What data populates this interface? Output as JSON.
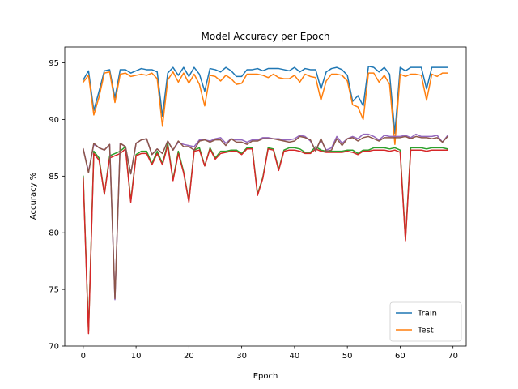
{
  "chart_data": {
    "type": "line",
    "title": "Model Accuracy per Epoch",
    "xlabel": "Epoch",
    "ylabel": "Accuracy %",
    "xlim": [
      -3.5,
      72.5
    ],
    "ylim": [
      70,
      96.4
    ],
    "xticks": [
      0,
      10,
      20,
      30,
      40,
      50,
      60,
      70
    ],
    "yticks": [
      70,
      75,
      80,
      85,
      90,
      95
    ],
    "grid": false,
    "legend_position": "bottom-right",
    "series": [
      {
        "name": "Train",
        "color": "#1f77b4",
        "in_legend": true,
        "values": [
          93.5,
          94.3,
          90.8,
          92.5,
          94.3,
          94.4,
          91.9,
          94.4,
          94.4,
          94.1,
          94.3,
          94.5,
          94.4,
          94.4,
          94.2,
          90.3,
          94.1,
          94.6,
          93.9,
          94.6,
          93.8,
          94.6,
          94.0,
          92.5,
          94.5,
          94.4,
          94.2,
          94.6,
          94.3,
          93.8,
          93.8,
          94.4,
          94.4,
          94.5,
          94.3,
          94.5,
          94.5,
          94.5,
          94.4,
          94.3,
          94.6,
          94.2,
          94.5,
          94.4,
          94.4,
          92.7,
          94.2,
          94.5,
          94.6,
          94.4,
          93.9,
          91.6,
          92.1,
          91.2,
          94.7,
          94.6,
          94.2,
          94.6,
          94.0,
          88.8,
          94.6,
          94.3,
          94.6,
          94.6,
          94.6,
          92.7,
          94.6,
          94.6,
          94.6,
          94.6
        ]
      },
      {
        "name": "Test",
        "color": "#ff7f0e",
        "in_legend": true,
        "values": [
          93.3,
          93.9,
          90.4,
          92.0,
          94.1,
          94.2,
          91.5,
          94.0,
          94.1,
          93.8,
          93.9,
          94.0,
          93.9,
          94.1,
          93.6,
          89.4,
          93.5,
          94.2,
          93.3,
          94.1,
          93.2,
          94.0,
          93.1,
          91.2,
          93.9,
          93.8,
          93.4,
          93.9,
          93.6,
          93.1,
          93.2,
          94.0,
          94.0,
          94.0,
          93.9,
          93.7,
          94.0,
          93.7,
          93.6,
          93.6,
          93.9,
          93.3,
          94.0,
          93.8,
          93.7,
          91.7,
          93.4,
          94.0,
          94.0,
          93.9,
          93.4,
          91.3,
          91.1,
          90.0,
          94.1,
          94.1,
          93.3,
          93.9,
          93.1,
          87.8,
          94.0,
          93.8,
          94.0,
          94.0,
          93.9,
          91.7,
          94.0,
          93.8,
          94.1,
          94.1
        ]
      },
      {
        "name": "",
        "color": "#2ca02c",
        "in_legend": false,
        "values": [
          85.0,
          71.3,
          87.2,
          86.6,
          83.4,
          86.8,
          87.0,
          87.2,
          87.6,
          82.8,
          86.9,
          87.2,
          87.2,
          86.1,
          87.2,
          86.1,
          87.9,
          84.7,
          87.2,
          85.4,
          82.8,
          87.3,
          87.5,
          85.9,
          87.5,
          86.6,
          87.2,
          87.2,
          87.3,
          87.3,
          87.0,
          87.5,
          87.5,
          83.4,
          84.9,
          87.5,
          87.4,
          85.6,
          87.3,
          87.5,
          87.5,
          87.4,
          87.1,
          87.1,
          87.6,
          87.3,
          87.2,
          87.2,
          87.2,
          87.2,
          87.3,
          87.3,
          87.0,
          87.3,
          87.3,
          87.5,
          87.5,
          87.5,
          87.4,
          87.5,
          87.3,
          79.4,
          87.5,
          87.5,
          87.5,
          87.4,
          87.5,
          87.5,
          87.5,
          87.4
        ]
      },
      {
        "name": "",
        "color": "#d62728",
        "in_legend": false,
        "values": [
          84.8,
          71.1,
          87.0,
          86.4,
          83.4,
          86.6,
          86.8,
          87.0,
          87.4,
          82.7,
          86.8,
          87.0,
          87.0,
          86.0,
          87.0,
          86.0,
          87.7,
          84.6,
          87.0,
          85.3,
          82.7,
          87.2,
          87.3,
          85.9,
          87.4,
          86.5,
          87.0,
          87.1,
          87.2,
          87.2,
          86.9,
          87.4,
          87.4,
          83.3,
          84.8,
          87.4,
          87.3,
          85.5,
          87.2,
          87.3,
          87.3,
          87.2,
          87.0,
          87.0,
          87.4,
          87.2,
          87.1,
          87.1,
          87.1,
          87.1,
          87.2,
          87.1,
          86.9,
          87.2,
          87.2,
          87.3,
          87.3,
          87.3,
          87.2,
          87.3,
          87.1,
          79.3,
          87.3,
          87.3,
          87.3,
          87.2,
          87.3,
          87.3,
          87.3,
          87.3
        ]
      },
      {
        "name": "",
        "color": "#9467bd",
        "in_legend": false,
        "values": [
          87.4,
          85.4,
          87.8,
          87.5,
          87.3,
          87.8,
          74.1,
          87.9,
          87.6,
          85.2,
          87.9,
          88.2,
          88.3,
          86.9,
          87.4,
          87.0,
          88.1,
          87.3,
          88.0,
          87.8,
          87.7,
          87.6,
          88.2,
          88.2,
          88.1,
          88.3,
          88.4,
          87.9,
          88.3,
          88.2,
          88.2,
          88.0,
          88.2,
          88.2,
          88.4,
          88.4,
          88.3,
          88.3,
          88.2,
          88.2,
          88.3,
          88.6,
          88.5,
          88.1,
          87.3,
          88.2,
          87.3,
          87.5,
          88.5,
          87.9,
          88.3,
          88.5,
          88.3,
          88.7,
          88.7,
          88.5,
          88.2,
          88.6,
          88.5,
          88.5,
          88.5,
          88.6,
          88.4,
          88.7,
          88.5,
          88.5,
          88.5,
          88.6,
          88.0,
          88.6
        ]
      },
      {
        "name": "",
        "color": "#8c564b",
        "in_legend": false,
        "values": [
          87.4,
          85.3,
          87.9,
          87.5,
          87.3,
          87.8,
          74.2,
          87.9,
          87.6,
          85.2,
          87.9,
          88.2,
          88.3,
          86.9,
          87.4,
          87.0,
          88.1,
          87.3,
          88.1,
          87.6,
          87.6,
          87.3,
          88.1,
          88.2,
          88.0,
          88.2,
          88.2,
          87.7,
          88.3,
          88.0,
          88.0,
          87.8,
          88.1,
          88.1,
          88.3,
          88.3,
          88.3,
          88.2,
          88.1,
          88.0,
          88.1,
          88.5,
          88.4,
          88.2,
          87.2,
          88.3,
          87.2,
          87.3,
          88.3,
          87.7,
          88.3,
          88.4,
          88.1,
          88.4,
          88.5,
          88.3,
          88.1,
          88.4,
          88.4,
          88.4,
          88.4,
          88.5,
          88.3,
          88.5,
          88.4,
          88.4,
          88.3,
          88.4,
          88.0,
          88.5
        ]
      }
    ]
  }
}
